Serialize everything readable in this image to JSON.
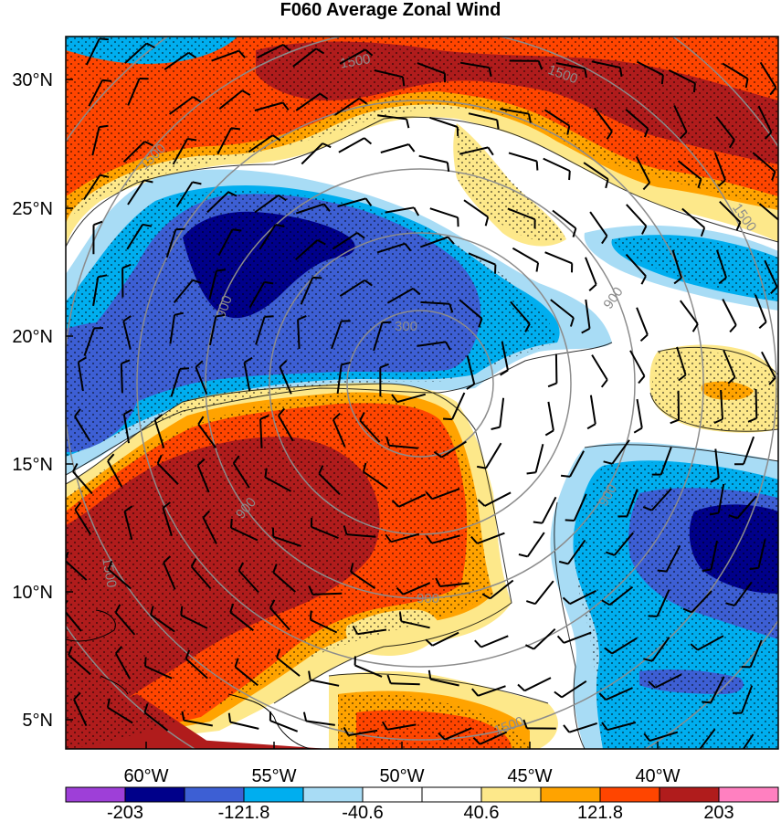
{
  "title": "F060 Average Zonal Wind",
  "lat_labels": [
    "30°N",
    "25°N",
    "20°N",
    "15°N",
    "10°N",
    "5°N"
  ],
  "lon_labels": [
    "60°W",
    "55°W",
    "50°W",
    "45°W",
    "40°W"
  ],
  "colorbar": {
    "colors": [
      "#9e3fd8",
      "#00008a",
      "#3d5fd4",
      "#00aeef",
      "#a8dcf5",
      "#ffffff",
      "#ffffff",
      "#fde88a",
      "#ffa300",
      "#ff4500",
      "#b01c1c",
      "#ff80c0"
    ],
    "labels": [
      "-203",
      "-121.8",
      "-40.6",
      "40.6",
      "121.8",
      "203"
    ]
  },
  "contours": {
    "labels": [
      "300",
      "900",
      "900",
      "900",
      "900",
      "900",
      "1500",
      "1500",
      "1500",
      "1500",
      "1500",
      "1500"
    ]
  },
  "palette": {
    "dark_red": "#b01c1c",
    "red_orange": "#ff4500",
    "orange": "#ffa300",
    "light_yellow": "#fde88a",
    "white": "#ffffff",
    "light_blue": "#a8dcf5",
    "cyan_blue": "#00aeef",
    "medium_blue": "#3d5fd4",
    "navy": "#00008a",
    "contour_gray": "#8c8c8c"
  }
}
